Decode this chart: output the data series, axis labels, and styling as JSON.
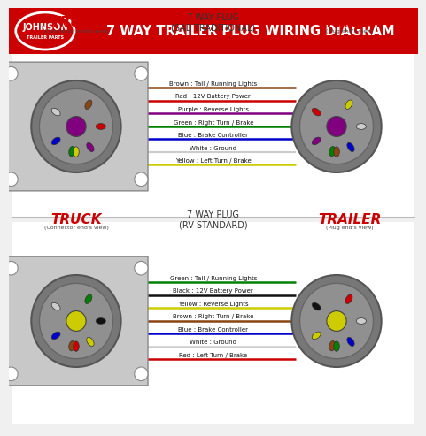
{
  "title": "7 WAY TRAILER PLUG WIRING DIAGRAM",
  "brand": "JOHNSON",
  "brand_sub": "TRAILER PARTS",
  "bg_color": "#f0f0f0",
  "header_color": "#cc0000",
  "header_text_color": "#ffffff",
  "section1_title": "7 WAY PLUG\n(SAE TRADITIONAL)",
  "section2_title": "7 WAY PLUG\n(RV STANDARD)",
  "truck_label": "TRUCK",
  "truck_sub": "(Connector end's view)",
  "trailer_label": "TRAILER",
  "trailer_sub": "(Plug end's view)",
  "sae_wires": [
    {
      "label": "Brown : Tail / Running Lights",
      "color": "#8B4513"
    },
    {
      "label": "Red : 12V Battery Power",
      "color": "#cc0000"
    },
    {
      "label": "Purple : Reverse Lights",
      "color": "#800080"
    },
    {
      "label": "Green : Right Turn / Brake",
      "color": "#008000"
    },
    {
      "label": "Blue : Brake Controller",
      "color": "#0000cc"
    },
    {
      "label": "White : Ground",
      "color": "#cccccc"
    },
    {
      "label": "Yellow : Left Turn / Brake",
      "color": "#cccc00"
    }
  ],
  "rv_wires": [
    {
      "label": "Green : Tail / Running Lights",
      "color": "#008000"
    },
    {
      "label": "Black : 12V Battery Power",
      "color": "#111111"
    },
    {
      "label": "Yellow : Reverse Lights",
      "color": "#cccc00"
    },
    {
      "label": "Brown : Right Turn / Brake",
      "color": "#8B4513"
    },
    {
      "label": "Blue : Brake Controller",
      "color": "#0000cc"
    },
    {
      "label": "White : Ground",
      "color": "#cccccc"
    },
    {
      "label": "Red : Left Turn / Brake",
      "color": "#cc0000"
    }
  ],
  "divider_color": "#bbbbbb",
  "plug_bg": "#888888",
  "plug_face_bg": "#999999",
  "connector_bg": "#aaaaaa",
  "center_circle_sae": "#800080",
  "center_circle_rv": "#cccc00"
}
